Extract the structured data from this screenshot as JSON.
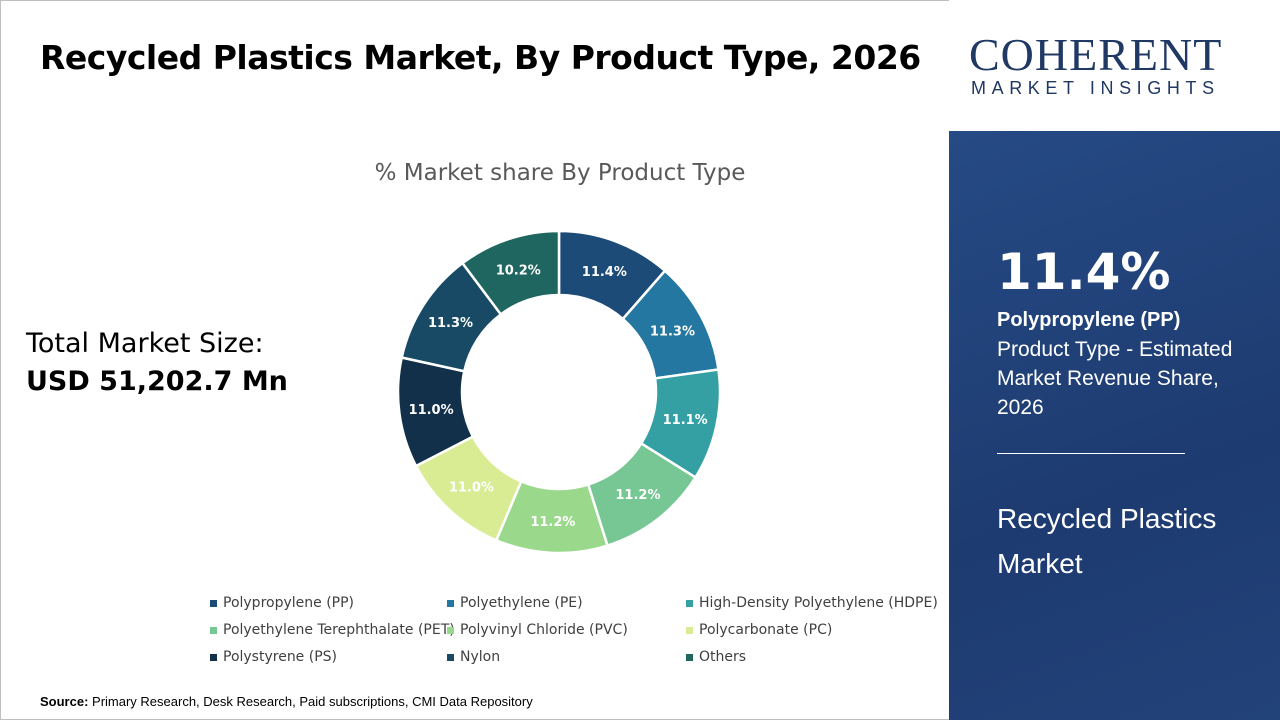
{
  "title": "Recycled Plastics Market, By Product Type, 2026",
  "total": {
    "label": "Total Market Size:",
    "value": "USD 51,202.7 Mn"
  },
  "source": {
    "label": "Source:",
    "text": " Primary Research, Desk Research, Paid subscriptions, CMI Data Repository"
  },
  "logo": {
    "name": "COHERENT",
    "tagline": "MARKET INSIGHTS"
  },
  "highlight": {
    "percent": "11.4%",
    "segment": "Polypropylene (PP)",
    "description": "Product Type - Estimated Market Revenue Share, 2026",
    "market": "Recycled Plastics Market"
  },
  "chart_data": {
    "type": "pie",
    "donut": true,
    "title": "% Market share By Product Type",
    "categories": [
      "Polypropylene (PP)",
      "Polyethylene (PE)",
      "High-Density Polyethylene (HDPE)",
      "Polyethylene Terephthalate (PET)",
      "Polyvinyl Chloride (PVC)",
      "Polycarbonate (PC)",
      "Polystyrene (PS)",
      "Nylon",
      "Others"
    ],
    "values": [
      11.4,
      11.3,
      11.1,
      11.2,
      11.2,
      11.0,
      11.0,
      11.3,
      10.2
    ],
    "labels": [
      "11.4%",
      "11.3%",
      "11.1%",
      "11.2%",
      "11.2%",
      "11.0%",
      "11.0%",
      "11.3%",
      "10.2%"
    ],
    "colors": [
      "#1d4b78",
      "#2477a0",
      "#35a0a4",
      "#76c793",
      "#9ad98b",
      "#d9ec93",
      "#12304a",
      "#184a66",
      "#1f6660"
    ],
    "legend_position": "bottom"
  }
}
